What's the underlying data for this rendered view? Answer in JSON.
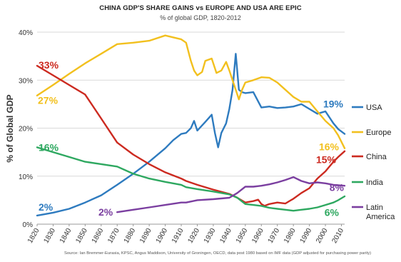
{
  "chart_data": {
    "type": "line",
    "title": "CHINA GDP'S SHARE GAINS vs EUROPE AND USA ARE EPIC",
    "subtitle": "% of global GDP, 1820-2012",
    "ylabel": "% of Global GDP",
    "xlabel": "",
    "source": "Source: Ian Bremmer-Eurasia, KPSC, Angus Maddison, University of Groningen, OECD, data post 1980 based on IMF data (GDP adjusted for purchasing power parity)",
    "xlim": [
      1820,
      2012
    ],
    "ylim": [
      0,
      40
    ],
    "x_ticks": [
      "1820",
      "1830",
      "1840",
      "1850",
      "1860",
      "1870",
      "1880",
      "1890",
      "1900",
      "1910",
      "1920",
      "1930",
      "1940",
      "1950",
      "1960",
      "1970",
      "1980",
      "1990",
      "2000",
      "2010"
    ],
    "y_ticks": [
      "0%",
      "10%",
      "20%",
      "30%",
      "40%"
    ],
    "grid": true,
    "legend_position": "right",
    "series": [
      {
        "name": "USA",
        "color": "#2e7bbf",
        "points": [
          [
            1820,
            1.8
          ],
          [
            1830,
            2.4
          ],
          [
            1840,
            3.2
          ],
          [
            1850,
            4.5
          ],
          [
            1860,
            6
          ],
          [
            1870,
            8.2
          ],
          [
            1880,
            10.5
          ],
          [
            1890,
            13
          ],
          [
            1900,
            15.8
          ],
          [
            1905,
            17.5
          ],
          [
            1910,
            18.8
          ],
          [
            1913,
            19
          ],
          [
            1916,
            20
          ],
          [
            1918,
            21.5
          ],
          [
            1920,
            19.5
          ],
          [
            1925,
            21.3
          ],
          [
            1929,
            22.8
          ],
          [
            1931,
            19
          ],
          [
            1933,
            16
          ],
          [
            1935,
            19
          ],
          [
            1938,
            21
          ],
          [
            1940,
            24
          ],
          [
            1942,
            28
          ],
          [
            1944,
            35.5
          ],
          [
            1946,
            28
          ],
          [
            1948,
            27.5
          ],
          [
            1950,
            27.3
          ],
          [
            1955,
            27.5
          ],
          [
            1960,
            24.3
          ],
          [
            1965,
            24.5
          ],
          [
            1970,
            24.2
          ],
          [
            1975,
            24.3
          ],
          [
            1980,
            24.5
          ],
          [
            1985,
            25
          ],
          [
            1990,
            24
          ],
          [
            1995,
            23
          ],
          [
            2000,
            23.5
          ],
          [
            2005,
            21
          ],
          [
            2008,
            19.8
          ],
          [
            2012,
            18.8
          ]
        ],
        "start_label": "2%",
        "end_label": "19%"
      },
      {
        "name": "Europe",
        "color": "#f2c01e",
        "points": [
          [
            1820,
            26.8
          ],
          [
            1830,
            29
          ],
          [
            1840,
            31.3
          ],
          [
            1850,
            33.5
          ],
          [
            1860,
            35.5
          ],
          [
            1870,
            37.5
          ],
          [
            1880,
            37.8
          ],
          [
            1890,
            38.2
          ],
          [
            1900,
            39.3
          ],
          [
            1910,
            38.5
          ],
          [
            1913,
            37.8
          ],
          [
            1916,
            34
          ],
          [
            1918,
            32
          ],
          [
            1920,
            31
          ],
          [
            1923,
            31.7
          ],
          [
            1925,
            34
          ],
          [
            1929,
            34.5
          ],
          [
            1932,
            31.5
          ],
          [
            1935,
            32
          ],
          [
            1938,
            33.8
          ],
          [
            1940,
            32
          ],
          [
            1942,
            30
          ],
          [
            1944,
            28
          ],
          [
            1946,
            26
          ],
          [
            1948,
            28
          ],
          [
            1950,
            29.5
          ],
          [
            1955,
            30
          ],
          [
            1960,
            30.6
          ],
          [
            1965,
            30.5
          ],
          [
            1970,
            29.5
          ],
          [
            1975,
            28
          ],
          [
            1980,
            26.5
          ],
          [
            1985,
            25.5
          ],
          [
            1990,
            25.5
          ],
          [
            1995,
            23.5
          ],
          [
            2000,
            21.5
          ],
          [
            2005,
            20
          ],
          [
            2008,
            18.5
          ],
          [
            2012,
            15.8
          ]
        ],
        "start_label": "27%",
        "end_label": "16%"
      },
      {
        "name": "China",
        "color": "#cc2a20",
        "points": [
          [
            1820,
            33
          ],
          [
            1830,
            31
          ],
          [
            1840,
            29
          ],
          [
            1850,
            27
          ],
          [
            1860,
            22
          ],
          [
            1870,
            17
          ],
          [
            1880,
            14.5
          ],
          [
            1890,
            12.5
          ],
          [
            1900,
            10.8
          ],
          [
            1910,
            9.5
          ],
          [
            1913,
            9
          ],
          [
            1920,
            8.2
          ],
          [
            1930,
            7.2
          ],
          [
            1940,
            6.3
          ],
          [
            1945,
            5.5
          ],
          [
            1950,
            4.5
          ],
          [
            1955,
            4.8
          ],
          [
            1958,
            5.1
          ],
          [
            1960,
            4.2
          ],
          [
            1962,
            3.8
          ],
          [
            1965,
            4.2
          ],
          [
            1970,
            4.5
          ],
          [
            1975,
            4.3
          ],
          [
            1978,
            4.9
          ],
          [
            1980,
            5.3
          ],
          [
            1985,
            6.5
          ],
          [
            1990,
            7.5
          ],
          [
            1995,
            9.5
          ],
          [
            2000,
            11
          ],
          [
            2005,
            13
          ],
          [
            2008,
            14
          ],
          [
            2012,
            15.2
          ]
        ],
        "start_label": "33%",
        "end_label": "15%"
      },
      {
        "name": "India",
        "color": "#2ea860",
        "points": [
          [
            1820,
            16
          ],
          [
            1830,
            15
          ],
          [
            1840,
            14
          ],
          [
            1850,
            13
          ],
          [
            1860,
            12.5
          ],
          [
            1870,
            12
          ],
          [
            1880,
            10.5
          ],
          [
            1890,
            9.5
          ],
          [
            1900,
            8.8
          ],
          [
            1910,
            8.2
          ],
          [
            1913,
            7.7
          ],
          [
            1920,
            7.3
          ],
          [
            1930,
            6.8
          ],
          [
            1940,
            6.2
          ],
          [
            1945,
            5.5
          ],
          [
            1950,
            4.2
          ],
          [
            1955,
            4
          ],
          [
            1960,
            3.8
          ],
          [
            1965,
            3.4
          ],
          [
            1970,
            3.2
          ],
          [
            1975,
            3
          ],
          [
            1980,
            2.8
          ],
          [
            1985,
            3
          ],
          [
            1990,
            3.2
          ],
          [
            1995,
            3.5
          ],
          [
            2000,
            4
          ],
          [
            2005,
            4.5
          ],
          [
            2008,
            5
          ],
          [
            2012,
            5.8
          ]
        ],
        "start_label": "16%",
        "end_label": "6%"
      },
      {
        "name": "Latin America",
        "color": "#7b3fa0",
        "points": [
          [
            1870,
            2.5
          ],
          [
            1880,
            3
          ],
          [
            1890,
            3.5
          ],
          [
            1900,
            4
          ],
          [
            1910,
            4.5
          ],
          [
            1913,
            4.5
          ],
          [
            1920,
            5
          ],
          [
            1930,
            5.2
          ],
          [
            1940,
            5.5
          ],
          [
            1945,
            6.5
          ],
          [
            1950,
            7.8
          ],
          [
            1955,
            7.8
          ],
          [
            1960,
            8
          ],
          [
            1965,
            8.3
          ],
          [
            1970,
            8.7
          ],
          [
            1975,
            9.2
          ],
          [
            1980,
            9.8
          ],
          [
            1985,
            9
          ],
          [
            1990,
            8.5
          ],
          [
            1995,
            8.7
          ],
          [
            2000,
            8.5
          ],
          [
            2005,
            8.2
          ],
          [
            2008,
            8.1
          ],
          [
            2012,
            8
          ]
        ],
        "start_label": "2%",
        "end_label": "8%"
      }
    ]
  }
}
